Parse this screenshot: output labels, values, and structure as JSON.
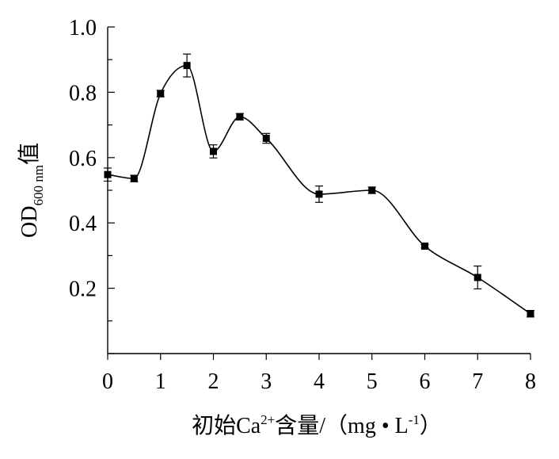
{
  "chart_data": {
    "type": "line",
    "x": [
      0,
      0.5,
      1,
      1.5,
      2,
      2.5,
      3,
      4,
      5,
      6,
      7,
      8
    ],
    "series": [
      {
        "values": [
          0.548,
          0.536,
          0.796,
          0.882,
          0.619,
          0.725,
          0.659,
          0.488,
          0.5,
          0.329,
          0.233,
          0.122
        ],
        "errors": [
          0.02,
          0.01,
          0.01,
          0.035,
          0.02,
          0.01,
          0.015,
          0.025,
          0.01,
          0.005,
          0.035,
          0.01
        ]
      }
    ],
    "xlim": [
      0,
      8
    ],
    "ylim": [
      0,
      1.0
    ],
    "xticks": [
      0,
      1,
      2,
      3,
      4,
      5,
      6,
      7,
      8
    ],
    "xtick_labels": [
      "0",
      "1",
      "2",
      "3",
      "4",
      "5",
      "6",
      "7",
      "8"
    ],
    "yticks": [
      0.2,
      0.4,
      0.6,
      0.8,
      1.0
    ],
    "ytick_labels": [
      "0.2",
      "0.4",
      "0.6",
      "0.8",
      "1.0"
    ],
    "xlabel_parts": {
      "pre": "初始Ca",
      "sup1": "2+",
      "mid": "含量/（mg • L",
      "sup2": "-1",
      "post": "）"
    },
    "ylabel_parts": {
      "main": "OD",
      "sub": "600 nm",
      "post": "值"
    },
    "curve": "smooth",
    "marker": "square",
    "grid": false,
    "colors": {
      "line": "#000000",
      "marker": "#000000"
    }
  }
}
